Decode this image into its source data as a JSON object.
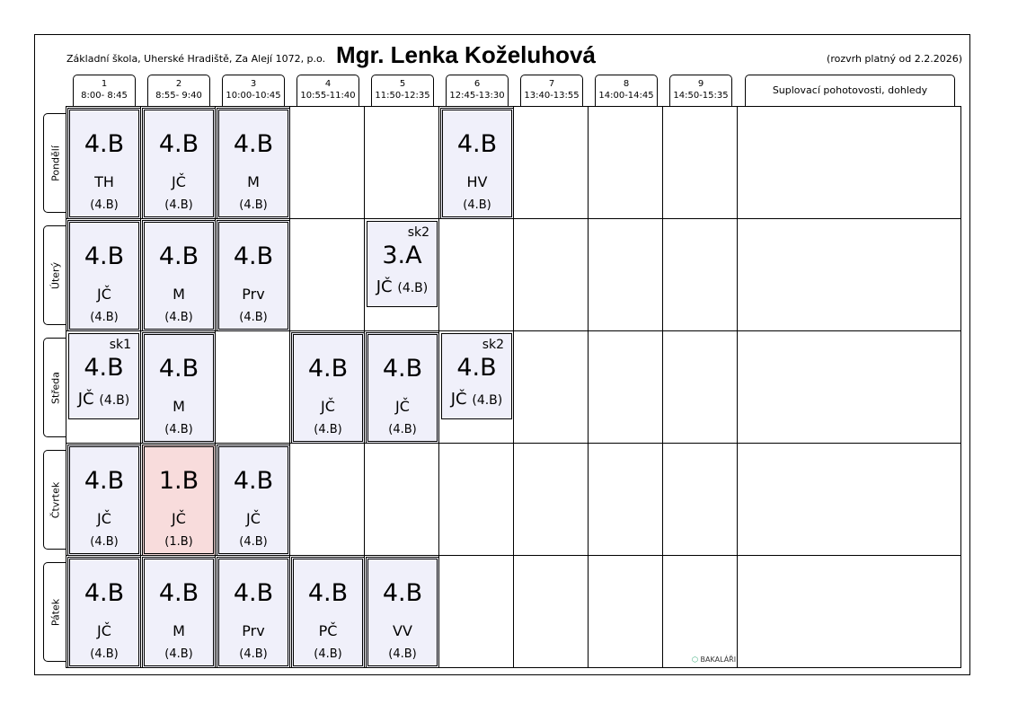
{
  "header": {
    "school": "Základní škola, Uherské Hradiště, Za Alejí 1072, p.o.",
    "teacher": "Mgr. Lenka Koželuhová",
    "valid": "(rozvrh platný od 2.2.2026)"
  },
  "periods": [
    {
      "num": "1",
      "time": "8:00- 8:45"
    },
    {
      "num": "2",
      "time": "8:55- 9:40"
    },
    {
      "num": "3",
      "time": "10:00-10:45"
    },
    {
      "num": "4",
      "time": "10:55-11:40"
    },
    {
      "num": "5",
      "time": "11:50-12:35"
    },
    {
      "num": "6",
      "time": "12:45-13:30"
    },
    {
      "num": "7",
      "time": "13:40-13:55"
    },
    {
      "num": "8",
      "time": "14:00-14:45"
    },
    {
      "num": "9",
      "time": "14:50-15:35"
    }
  ],
  "extra_header": "Suplovací pohotovosti, dohledy",
  "days": [
    {
      "name": "Pondělí",
      "lessons": [
        {
          "p": 0,
          "cls": "4.B",
          "subj": "TH",
          "grp": "(4.B)"
        },
        {
          "p": 1,
          "cls": "4.B",
          "subj": "JČ",
          "grp": "(4.B)"
        },
        {
          "p": 2,
          "cls": "4.B",
          "subj": "M",
          "grp": "(4.B)"
        },
        {
          "p": 5,
          "cls": "4.B",
          "subj": "HV",
          "grp": "(4.B)"
        }
      ]
    },
    {
      "name": "Úterý",
      "lessons": [
        {
          "p": 0,
          "cls": "4.B",
          "subj": "JČ",
          "grp": "(4.B)"
        },
        {
          "p": 1,
          "cls": "4.B",
          "subj": "M",
          "grp": "(4.B)"
        },
        {
          "p": 2,
          "cls": "4.B",
          "subj": "Prv",
          "grp": "(4.B)"
        },
        {
          "p": 4,
          "cls": "3.A",
          "subj": "JČ",
          "grp": "(4.B)",
          "sk": "sk2"
        }
      ]
    },
    {
      "name": "Středa",
      "lessons": [
        {
          "p": 0,
          "cls": "4.B",
          "subj": "JČ",
          "grp": "(4.B)",
          "sk": "sk1"
        },
        {
          "p": 1,
          "cls": "4.B",
          "subj": "M",
          "grp": "(4.B)"
        },
        {
          "p": 3,
          "cls": "4.B",
          "subj": "JČ",
          "grp": "(4.B)"
        },
        {
          "p": 4,
          "cls": "4.B",
          "subj": "JČ",
          "grp": "(4.B)"
        },
        {
          "p": 5,
          "cls": "4.B",
          "subj": "JČ",
          "grp": "(4.B)",
          "sk": "sk2"
        }
      ]
    },
    {
      "name": "Čtvrtek",
      "lessons": [
        {
          "p": 0,
          "cls": "4.B",
          "subj": "JČ",
          "grp": "(4.B)"
        },
        {
          "p": 1,
          "cls": "1.B",
          "subj": "JČ",
          "grp": "(1.B)",
          "highlight": "#f8dcdc"
        },
        {
          "p": 2,
          "cls": "4.B",
          "subj": "JČ",
          "grp": "(4.B)"
        }
      ]
    },
    {
      "name": "Pátek",
      "lessons": [
        {
          "p": 0,
          "cls": "4.B",
          "subj": "JČ",
          "grp": "(4.B)"
        },
        {
          "p": 1,
          "cls": "4.B",
          "subj": "M",
          "grp": "(4.B)"
        },
        {
          "p": 2,
          "cls": "4.B",
          "subj": "Prv",
          "grp": "(4.B)"
        },
        {
          "p": 3,
          "cls": "4.B",
          "subj": "PČ",
          "grp": "(4.B)"
        },
        {
          "p": 4,
          "cls": "4.B",
          "subj": "VV",
          "grp": "(4.B)"
        }
      ]
    }
  ],
  "logo": "BAKALÁŘI",
  "colors": {
    "card": "#f0f0fa",
    "highlight": "#f8dcdc"
  }
}
